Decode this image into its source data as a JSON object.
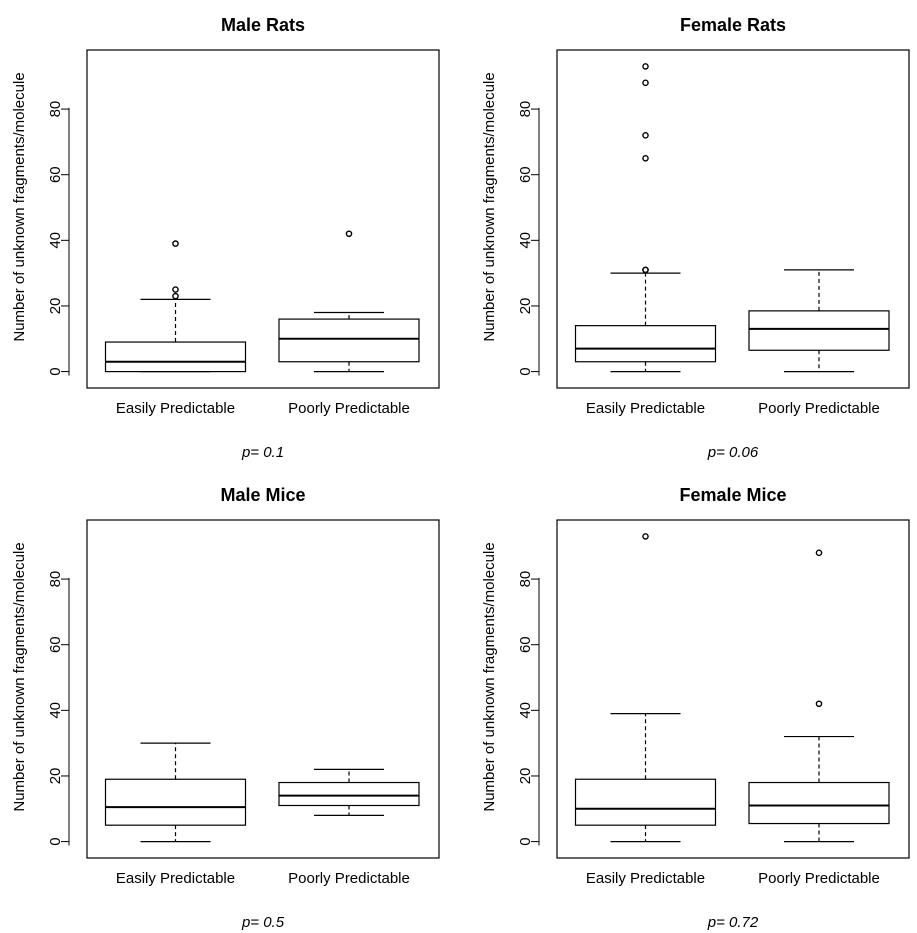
{
  "chart_data": [
    {
      "type": "box",
      "title": "Male Rats",
      "ylabel": "Number of unknown fragments/molecule",
      "ylim": [
        -5,
        98
      ],
      "yticks": [
        0,
        20,
        40,
        60,
        80
      ],
      "categories": [
        "Easily Predictable",
        "Poorly Predictable"
      ],
      "boxes": [
        {
          "category": "Easily Predictable",
          "whisker_low": 0,
          "q1": 0,
          "median": 3,
          "q3": 9,
          "whisker_high": 22,
          "outliers": [
            23,
            25,
            39
          ]
        },
        {
          "category": "Poorly Predictable",
          "whisker_low": 0,
          "q1": 3,
          "median": 10,
          "q3": 16,
          "whisker_high": 18,
          "outliers": [
            42
          ]
        }
      ],
      "annotation": "p= 0.1"
    },
    {
      "type": "box",
      "title": "Female Rats",
      "ylabel": "Number of unknown fragments/molecule",
      "ylim": [
        -5,
        98
      ],
      "yticks": [
        0,
        20,
        40,
        60,
        80
      ],
      "categories": [
        "Easily Predictable",
        "Poorly Predictable"
      ],
      "boxes": [
        {
          "category": "Easily Predictable",
          "whisker_low": 0,
          "q1": 3,
          "median": 7,
          "q3": 14,
          "whisker_high": 30,
          "outliers": [
            31,
            31,
            65,
            72,
            88,
            93
          ]
        },
        {
          "category": "Poorly Predictable",
          "whisker_low": 0,
          "q1": 6.5,
          "median": 13,
          "q3": 18.5,
          "whisker_high": 31,
          "outliers": []
        }
      ],
      "annotation": "p= 0.06"
    },
    {
      "type": "box",
      "title": "Male Mice",
      "ylabel": "Number of unknown fragments/molecule",
      "ylim": [
        -5,
        98
      ],
      "yticks": [
        0,
        20,
        40,
        60,
        80
      ],
      "categories": [
        "Easily Predictable",
        "Poorly Predictable"
      ],
      "boxes": [
        {
          "category": "Easily Predictable",
          "whisker_low": 0,
          "q1": 5,
          "median": 10.5,
          "q3": 19,
          "whisker_high": 30,
          "outliers": []
        },
        {
          "category": "Poorly Predictable",
          "whisker_low": 8,
          "q1": 11,
          "median": 14,
          "q3": 18,
          "whisker_high": 22,
          "outliers": []
        }
      ],
      "annotation": "p= 0.5"
    },
    {
      "type": "box",
      "title": "Female Mice",
      "ylabel": "Number of unknown fragments/molecule",
      "ylim": [
        -5,
        98
      ],
      "yticks": [
        0,
        20,
        40,
        60,
        80
      ],
      "categories": [
        "Easily Predictable",
        "Poorly Predictable"
      ],
      "boxes": [
        {
          "category": "Easily Predictable",
          "whisker_low": 0,
          "q1": 5,
          "median": 10,
          "q3": 19,
          "whisker_high": 39,
          "outliers": [
            93
          ]
        },
        {
          "category": "Poorly Predictable",
          "whisker_low": 0,
          "q1": 5.5,
          "median": 11,
          "q3": 18,
          "whisker_high": 32,
          "outliers": [
            42,
            88
          ]
        }
      ],
      "annotation": "p= 0.72"
    }
  ]
}
